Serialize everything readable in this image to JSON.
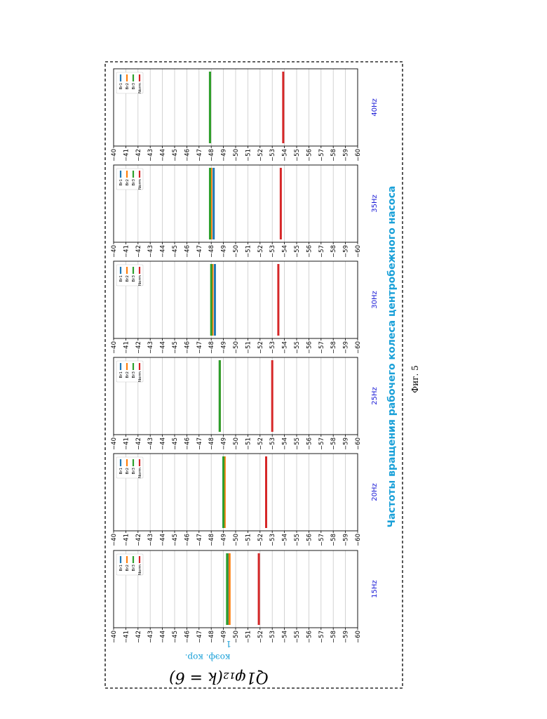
{
  "figure": {
    "formula": "Q1φ₁₂(k = 6)",
    "coef_label": "коэф. кор.",
    "axis_title": "Частоты вращения рабочего колеса центробежного насоса",
    "fig_label": "Фиг. 5",
    "stray_mark": "1"
  },
  "colors": {
    "Br1": "#1f77b4",
    "Br2": "#ff7f0e",
    "Br3": "#2ca02c",
    "Norm": "#d62728",
    "axis_title": "#19a0d8",
    "freq_label": "#1a1ad6"
  },
  "chart_data": [
    {
      "type": "line",
      "title": "15Hz",
      "ylim": [
        -40,
        -60
      ],
      "ticks": [
        -40,
        -41,
        -42,
        -43,
        -44,
        -45,
        -46,
        -47,
        -48,
        -49,
        -50,
        -51,
        -52,
        -53,
        -54,
        -55,
        -56,
        -57,
        -58,
        -59,
        -60
      ],
      "tick_labels": [
        "−40",
        "−41",
        "−42",
        "−43",
        "−44",
        "−45",
        "−46",
        "−47",
        "−48",
        "−49",
        "−50",
        "−51",
        "−52",
        "−53",
        "−54",
        "−55",
        "−56",
        "−57",
        "−58",
        "−59",
        "−60"
      ],
      "grid": true,
      "legend": "top-left",
      "series": [
        {
          "name": "Br1",
          "value": -49.4
        },
        {
          "name": "Br2",
          "value": -49.5
        },
        {
          "name": "Br3",
          "value": -49.3
        },
        {
          "name": "Norm",
          "value": -51.9
        }
      ]
    },
    {
      "type": "line",
      "title": "20Hz",
      "ylim": [
        -40,
        -60
      ],
      "ticks": [
        -40,
        -41,
        -42,
        -43,
        -44,
        -45,
        -46,
        -47,
        -48,
        -49,
        -50,
        -51,
        -52,
        -53,
        -54,
        -55,
        -56,
        -57,
        -58,
        -59,
        -60
      ],
      "tick_labels": [
        "−40",
        "−41",
        "−42",
        "−43",
        "−44",
        "−45",
        "−46",
        "−47",
        "−48",
        "−49",
        "−50",
        "−51",
        "−52",
        "−53",
        "−54",
        "−55",
        "−56",
        "−57",
        "−58",
        "−59",
        "−60"
      ],
      "grid": true,
      "legend": "top-left",
      "series": [
        {
          "name": "Br1",
          "value": -49.0
        },
        {
          "name": "Br2",
          "value": -49.1
        },
        {
          "name": "Br3",
          "value": -49.0
        },
        {
          "name": "Norm",
          "value": -52.5
        }
      ]
    },
    {
      "type": "line",
      "title": "25Hz",
      "ylim": [
        -40,
        -60
      ],
      "ticks": [
        -40,
        -41,
        -42,
        -43,
        -44,
        -45,
        -46,
        -47,
        -48,
        -49,
        -50,
        -51,
        -52,
        -53,
        -54,
        -55,
        -56,
        -57,
        -58,
        -59,
        -60
      ],
      "tick_labels": [
        "−40",
        "−41",
        "−42",
        "−43",
        "−44",
        "−45",
        "−46",
        "−47",
        "−48",
        "−49",
        "−50",
        "−51",
        "−52",
        "−53",
        "−54",
        "−55",
        "−56",
        "−57",
        "−58",
        "−59",
        "−60"
      ],
      "grid": true,
      "legend": "top-left",
      "series": [
        {
          "name": "Br1",
          "value": -48.7
        },
        {
          "name": "Br2",
          "value": -48.7
        },
        {
          "name": "Br3",
          "value": -48.7
        },
        {
          "name": "Norm",
          "value": -53.0
        }
      ]
    },
    {
      "type": "line",
      "title": "30Hz",
      "ylim": [
        -40,
        -60
      ],
      "ticks": [
        -40,
        -41,
        -42,
        -43,
        -44,
        -45,
        -46,
        -47,
        -48,
        -49,
        -50,
        -51,
        -52,
        -53,
        -54,
        -55,
        -56,
        -57,
        -58,
        -59,
        -60
      ],
      "tick_labels": [
        "−40",
        "−41",
        "−42",
        "−43",
        "−44",
        "−45",
        "−46",
        "−47",
        "−48",
        "−49",
        "−50",
        "−51",
        "−52",
        "−53",
        "−54",
        "−55",
        "−56",
        "−57",
        "−58",
        "−59",
        "−60"
      ],
      "grid": true,
      "legend": "top-left",
      "series": [
        {
          "name": "Br1",
          "value": -48.3
        },
        {
          "name": "Br2",
          "value": -48.1
        },
        {
          "name": "Br3",
          "value": -48.0
        },
        {
          "name": "Norm",
          "value": -53.5
        }
      ]
    },
    {
      "type": "line",
      "title": "35Hz",
      "ylim": [
        -40,
        -60
      ],
      "ticks": [
        -40,
        -41,
        -42,
        -43,
        -44,
        -45,
        -46,
        -47,
        -48,
        -49,
        -50,
        -51,
        -52,
        -53,
        -54,
        -55,
        -56,
        -57,
        -58,
        -59,
        -60
      ],
      "tick_labels": [
        "−40",
        "−41",
        "−42",
        "−43",
        "−44",
        "−45",
        "−46",
        "−47",
        "−48",
        "−49",
        "−50",
        "−51",
        "−52",
        "−53",
        "−54",
        "−55",
        "−56",
        "−57",
        "−58",
        "−59",
        "−60"
      ],
      "grid": true,
      "legend": "top-left",
      "series": [
        {
          "name": "Br1",
          "value": -48.2
        },
        {
          "name": "Br2",
          "value": -48.0
        },
        {
          "name": "Br3",
          "value": -47.9
        },
        {
          "name": "Norm",
          "value": -53.7
        }
      ]
    },
    {
      "type": "line",
      "title": "40Hz",
      "ylim": [
        -40,
        -60
      ],
      "ticks": [
        -40,
        -41,
        -42,
        -43,
        -44,
        -45,
        -46,
        -47,
        -48,
        -49,
        -50,
        -51,
        -52,
        -53,
        -54,
        -55,
        -56,
        -57,
        -58,
        -59,
        -60
      ],
      "tick_labels": [
        "−40",
        "−41",
        "−42",
        "−43",
        "−44",
        "−45",
        "−46",
        "−47",
        "−48",
        "−49",
        "−50",
        "−51",
        "−52",
        "−53",
        "−54",
        "−55",
        "−56",
        "−57",
        "−58",
        "−59",
        "−60"
      ],
      "grid": true,
      "legend": "top-left",
      "series": [
        {
          "name": "Br1",
          "value": -47.9
        },
        {
          "name": "Br2",
          "value": -47.9
        },
        {
          "name": "Br3",
          "value": -47.9
        },
        {
          "name": "Norm",
          "value": -53.9
        }
      ]
    }
  ]
}
